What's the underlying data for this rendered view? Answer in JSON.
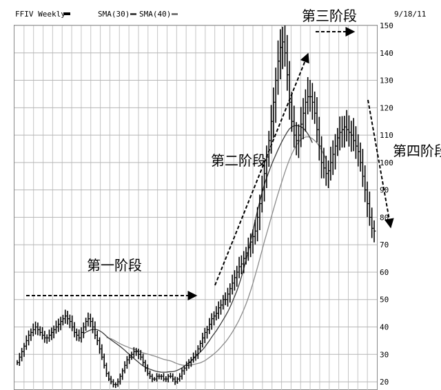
{
  "header": {
    "ticker_label": "FFIV Weekly",
    "sma30_label": "SMA(30)",
    "sma40_label": "SMA(40)",
    "date": "9/18/11"
  },
  "chart_data": {
    "type": "line",
    "title": "FFIV Weekly",
    "ylim": [
      17,
      150
    ],
    "y_ticks": [
      20,
      30,
      40,
      50,
      60,
      70,
      80,
      90,
      100,
      110,
      120,
      130,
      140,
      150
    ],
    "x_weeks": 156,
    "price_weekly": [
      27,
      29,
      31,
      33,
      35,
      37,
      38,
      39,
      40,
      39,
      38,
      37,
      36,
      36,
      37,
      38,
      39,
      40,
      41,
      42,
      43,
      44,
      43,
      42,
      40,
      38,
      37,
      36,
      38,
      40,
      42,
      43,
      42,
      40,
      37,
      35,
      32,
      29,
      26,
      23,
      21,
      20,
      19,
      19,
      20,
      22,
      24,
      26,
      28,
      29,
      30,
      31,
      31,
      30,
      29,
      27,
      25,
      23,
      22,
      21,
      21,
      22,
      22,
      22,
      21,
      21,
      22,
      22,
      21,
      20,
      21,
      22,
      24,
      25,
      26,
      27,
      28,
      29,
      30,
      32,
      34,
      36,
      38,
      39,
      41,
      43,
      44,
      45,
      47,
      48,
      50,
      50,
      52,
      54,
      56,
      58,
      60,
      62,
      63,
      65,
      67,
      69,
      71,
      73,
      75,
      80,
      85,
      90,
      96,
      102,
      108,
      115,
      122,
      130,
      137,
      142,
      144,
      140,
      132,
      122,
      115,
      110,
      108,
      110,
      114,
      118,
      122,
      124,
      124,
      122,
      118,
      112,
      106,
      100,
      98,
      96,
      97,
      100,
      103,
      106,
      109,
      111,
      112,
      113,
      112,
      111,
      110,
      108,
      106,
      104,
      100,
      95,
      90,
      85,
      80,
      76,
      75
    ],
    "sma30": [
      null,
      null,
      null,
      null,
      null,
      null,
      null,
      null,
      null,
      null,
      null,
      null,
      null,
      null,
      null,
      null,
      null,
      null,
      null,
      null,
      null,
      null,
      null,
      null,
      null,
      null,
      null,
      null,
      null,
      37.6,
      38.1,
      38.5,
      38.9,
      39.1,
      39.1,
      39.0,
      38.6,
      38.1,
      37.4,
      36.6,
      35.9,
      35.3,
      34.7,
      34.1,
      33.5,
      32.9,
      32.2,
      31.5,
      30.7,
      30.0,
      29.3,
      28.5,
      27.8,
      27.1,
      26.4,
      25.8,
      25.3,
      24.9,
      24.6,
      24.3,
      24.0,
      23.8,
      23.6,
      23.5,
      23.5,
      23.5,
      23.6,
      23.7,
      23.7,
      23.9,
      24.2,
      24.6,
      25.1,
      25.7,
      26.3,
      26.9,
      27.6,
      28.4,
      29.2,
      30.0,
      30.8,
      31.7,
      32.7,
      33.9,
      35.0,
      36.3,
      37.5,
      38.6,
      39.9,
      41.2,
      42.6,
      44.0,
      45.5,
      47.2,
      49.1,
      51.1,
      53.2,
      55.6,
      58.3,
      61.2,
      64.4,
      67.8,
      71.4,
      75.1,
      78.8,
      82.4,
      85.8,
      89.0,
      91.9,
      94.4,
      96.7,
      98.9,
      100.9,
      102.8,
      104.7,
      106.5,
      108.2,
      109.7,
      111.1,
      112.3,
      113.0,
      113.4,
      113.5,
      113.4,
      113.1,
      112.5,
      111.6,
      110.5,
      109.0,
      107.2
    ],
    "sma40": [
      null,
      null,
      null,
      null,
      null,
      null,
      null,
      null,
      null,
      null,
      null,
      null,
      null,
      null,
      null,
      null,
      null,
      null,
      null,
      null,
      null,
      null,
      null,
      null,
      null,
      null,
      null,
      null,
      null,
      null,
      null,
      null,
      null,
      null,
      null,
      null,
      null,
      null,
      null,
      36.2,
      35.9,
      35.7,
      35.3,
      34.8,
      34.3,
      33.9,
      33.5,
      33.1,
      32.8,
      32.4,
      32.1,
      31.9,
      31.6,
      31.2,
      30.9,
      30.6,
      30.3,
      30.1,
      29.9,
      29.6,
      29.4,
      29.1,
      28.8,
      28.5,
      28.2,
      28.0,
      27.8,
      27.6,
      27.3,
      26.9,
      26.6,
      26.3,
      26.1,
      26.0,
      25.9,
      26.0,
      26.1,
      26.3,
      26.5,
      26.7,
      26.9,
      27.3,
      27.7,
      28.3,
      28.9,
      29.5,
      30.2,
      30.9,
      31.7,
      32.6,
      33.6,
      34.5,
      35.6,
      36.8,
      38.1,
      39.5,
      41.0,
      42.6,
      44.4,
      46.3,
      48.4,
      50.7,
      53.2,
      55.9,
      58.8,
      61.8,
      64.9,
      68.0,
      71.1,
      74.0,
      77.0,
      80.0,
      82.9,
      85.8,
      88.6,
      91.3,
      93.9,
      96.5,
      98.9,
      101.1,
      103.1,
      104.8,
      106.3,
      107.5,
      108.4,
      109.0,
      109.3,
      109.4,
      109.2,
      108.7,
      108.0,
      107.1,
      106.0,
      104.6,
      103.0,
      101.1
    ]
  },
  "annotations": {
    "stage1": "第一阶段",
    "stage2": "第二阶段",
    "stage3": "第三阶段",
    "stage4": "第四阶段"
  }
}
